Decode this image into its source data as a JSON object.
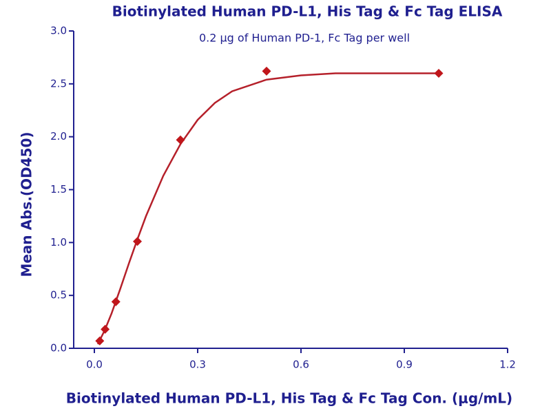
{
  "chart_data": {
    "type": "scatter",
    "title": "Biotinylated Human PD-L1, His Tag & Fc Tag ELISA",
    "subtitle": "0.2 μg of Human PD-1, Fc Tag per well",
    "x_label": "Biotinylated Human PD-L1, His Tag & Fc Tag Con. (μg/mL)",
    "y_label": "Mean Abs.(OD450)",
    "x": [
      0.0156,
      0.03125,
      0.0625,
      0.125,
      0.25,
      0.5,
      1.0
    ],
    "series": [
      {
        "color": "#c0161b",
        "values": [
          0.07,
          0.18,
          0.44,
          1.01,
          1.97,
          2.62,
          2.6
        ]
      }
    ],
    "curve": {
      "color": "#b5202a",
      "x": [
        0.01,
        0.03,
        0.05,
        0.075,
        0.1,
        0.125,
        0.15,
        0.2,
        0.25,
        0.3,
        0.35,
        0.4,
        0.5,
        0.6,
        0.7,
        0.8,
        1.0
      ],
      "y": [
        0.04,
        0.17,
        0.33,
        0.56,
        0.8,
        1.03,
        1.25,
        1.63,
        1.93,
        2.16,
        2.32,
        2.43,
        2.54,
        2.58,
        2.6,
        2.6,
        2.6
      ]
    },
    "xlim": [
      -0.06,
      1.2
    ],
    "ylim": [
      0,
      3
    ],
    "xticks": [
      {
        "value": 0,
        "label": "0.0"
      },
      0.3,
      0.6,
      0.9,
      1.2
    ],
    "yticks": [
      {
        "value": 0,
        "label": "0.0"
      },
      0.5,
      {
        "value": 1,
        "label": "1.0"
      },
      1.5,
      {
        "value": 2,
        "label": "2.0"
      },
      2.5,
      {
        "value": 3,
        "label": "3.0"
      }
    ],
    "axis_color": "#1f1f8f"
  }
}
